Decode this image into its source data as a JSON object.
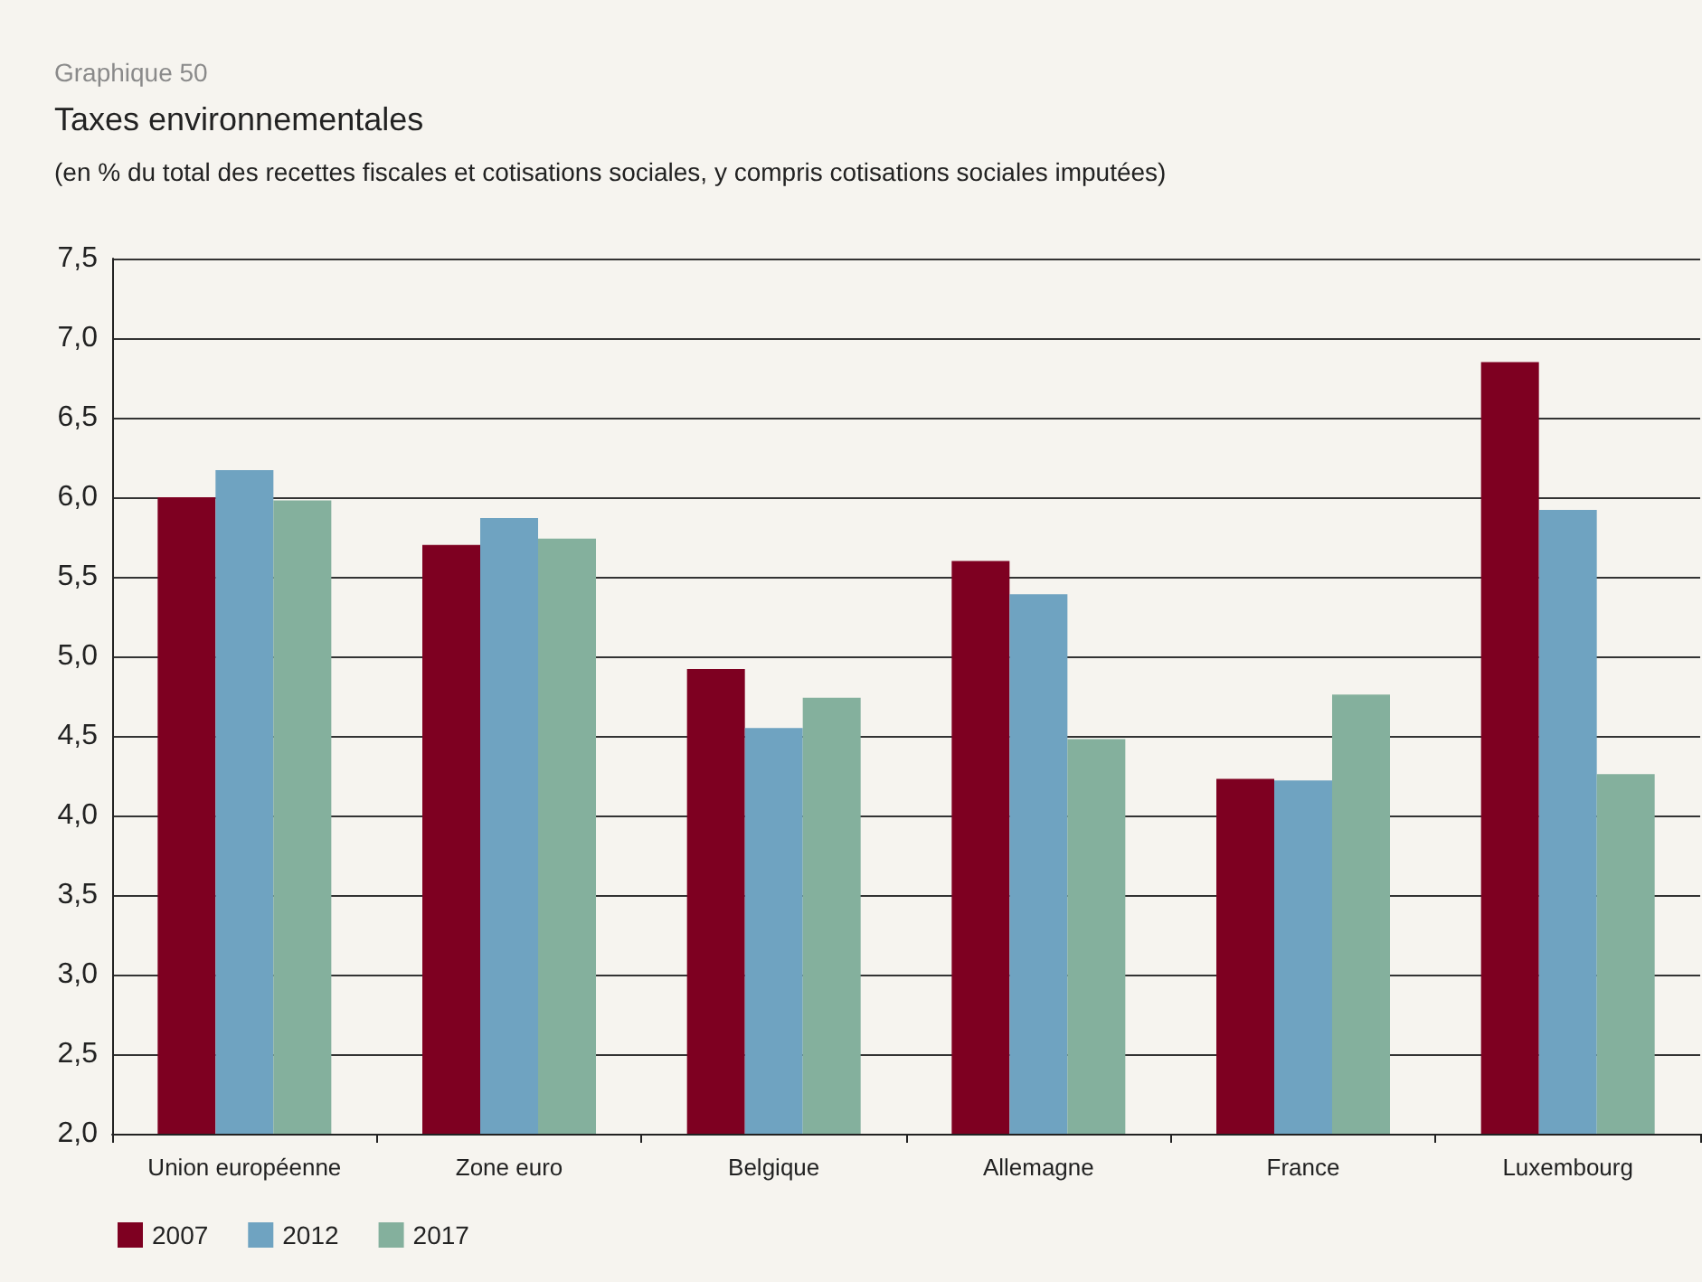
{
  "chart_data": {
    "type": "bar",
    "title": "Taxes environnementales",
    "subtitle": "(en % du total des recettes fiscales et cotisations sociales, y compris cotisations sociales imputées)",
    "annotations": [
      "Graphique 50"
    ],
    "categories": [
      "Union européenne",
      "Zone euro",
      "Belgique",
      "Allemagne",
      "France",
      "Luxembourg"
    ],
    "series": [
      {
        "name": "2007",
        "color": "#7e0021",
        "values": [
          6.0,
          5.7,
          4.92,
          5.6,
          4.23,
          6.85
        ]
      },
      {
        "name": "2012",
        "color": "#6fa3c1",
        "values": [
          6.17,
          5.87,
          4.55,
          5.39,
          4.22,
          5.92
        ]
      },
      {
        "name": "2017",
        "color": "#84b09d",
        "values": [
          5.98,
          5.74,
          4.74,
          4.48,
          4.76,
          4.26
        ]
      }
    ],
    "ylim": [
      2.0,
      7.5
    ],
    "yticks": [
      {
        "value": 2.0,
        "label": "2,0"
      },
      {
        "value": 2.5,
        "label": "2,5"
      },
      {
        "value": 3.0,
        "label": "3,0"
      },
      {
        "value": 3.5,
        "label": "3,5"
      },
      {
        "value": 4.0,
        "label": "4,0"
      },
      {
        "value": 4.5,
        "label": "4,5"
      },
      {
        "value": 5.0,
        "label": "5,0"
      },
      {
        "value": 5.5,
        "label": "5,5"
      },
      {
        "value": 6.0,
        "label": "6,0"
      },
      {
        "value": 6.5,
        "label": "6,5"
      },
      {
        "value": 7.0,
        "label": "7,0"
      },
      {
        "value": 7.5,
        "label": "7,5"
      }
    ],
    "grid": "y",
    "legend": "bottom left"
  }
}
